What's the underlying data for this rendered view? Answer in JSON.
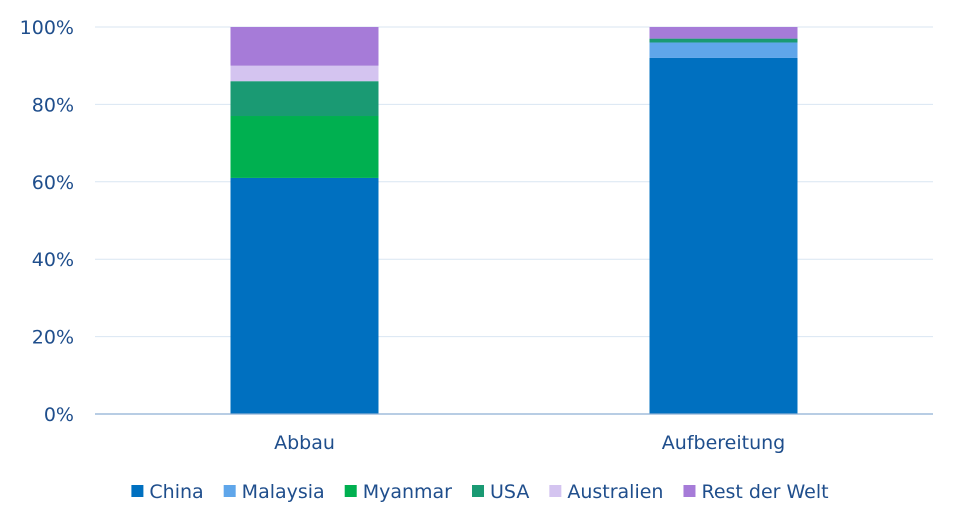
{
  "chart_data": {
    "type": "bar",
    "stacked": true,
    "title": "",
    "xlabel": "",
    "ylabel": "",
    "ylim": [
      0,
      100
    ],
    "y_ticks": [
      0,
      20,
      40,
      60,
      80,
      100
    ],
    "y_tick_labels": [
      "0%",
      "20%",
      "40%",
      "60%",
      "80%",
      "100%"
    ],
    "grid": true,
    "legend_position": "bottom",
    "categories": [
      "Abbau",
      "Aufbereitung"
    ],
    "series": [
      {
        "name": "China",
        "color": "#0070C0",
        "values": [
          61,
          92
        ]
      },
      {
        "name": "Malaysia",
        "color": "#5FA6EA",
        "values": [
          0,
          4
        ]
      },
      {
        "name": "Myanmar",
        "color": "#00B050",
        "values": [
          16,
          0
        ]
      },
      {
        "name": "USA",
        "color": "#1A9A73",
        "values": [
          9,
          1
        ]
      },
      {
        "name": "Australien",
        "color": "#D4C4F0",
        "values": [
          4,
          0
        ]
      },
      {
        "name": "Rest der Welt",
        "color": "#A67BD8",
        "values": [
          10,
          3
        ]
      }
    ]
  }
}
